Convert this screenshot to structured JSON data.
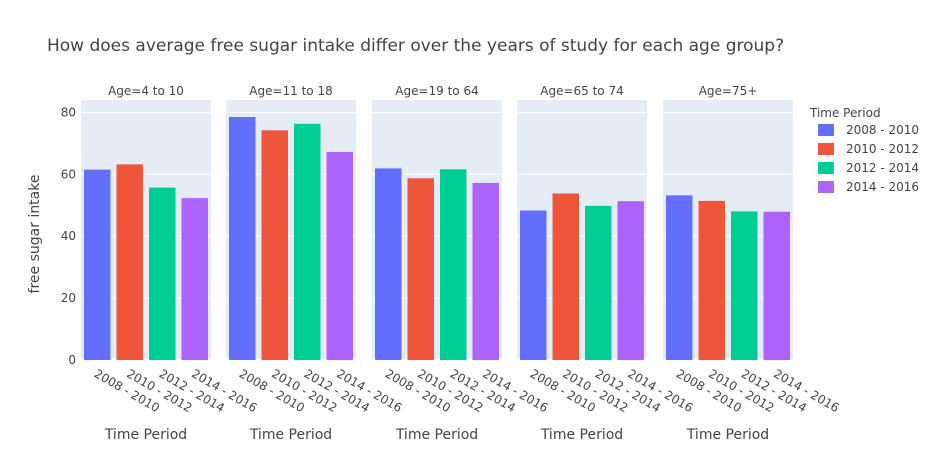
{
  "chart_data": {
    "type": "bar",
    "title": "How does average free sugar intake differ over the years of study for each age group?",
    "ylabel": "free sugar intake",
    "xlabel": "Time Period",
    "ylim": [
      0,
      84
    ],
    "yticks": [
      0,
      20,
      40,
      60,
      80
    ],
    "grid": true,
    "legend_title": "Time Period",
    "legend_position": "right",
    "categories": [
      "2008 - 2010",
      "2010 - 2012",
      "2012 - 2014",
      "2014 - 2016"
    ],
    "colors": [
      "#636efa",
      "#ef553b",
      "#00cc96",
      "#ab63fa"
    ],
    "facets": [
      {
        "label": "Age=4 to 10",
        "values": [
          61.5,
          63.2,
          55.7,
          52.3
        ]
      },
      {
        "label": "Age=11 to 18",
        "values": [
          78.5,
          74.2,
          76.3,
          67.2
        ]
      },
      {
        "label": "Age=19 to 64",
        "values": [
          61.9,
          58.7,
          61.6,
          57.2
        ]
      },
      {
        "label": "Age=65 to 74",
        "values": [
          48.3,
          53.8,
          49.8,
          51.3
        ]
      },
      {
        "label": "Age=75+",
        "values": [
          53.2,
          51.4,
          48.0,
          47.9
        ]
      }
    ]
  }
}
